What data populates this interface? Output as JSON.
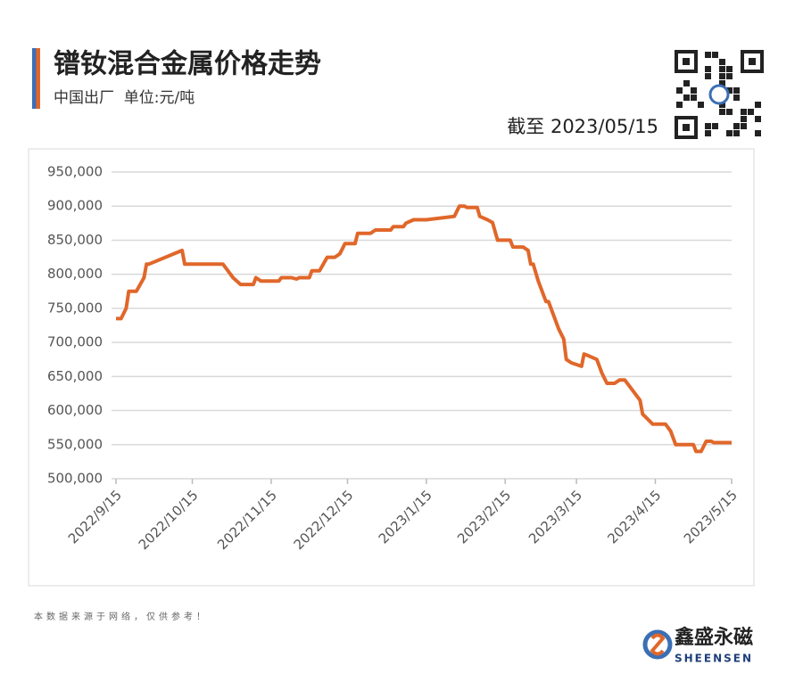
{
  "chart_data": {
    "type": "line",
    "title": "镨钕混合金属价格走势",
    "subtitle": "中国出厂  单位:元/吨",
    "annotation": "截至 2023/05/15",
    "color": "#e0672a",
    "grid": true,
    "x": [
      "2022/9/15",
      "2022/9/17",
      "2022/9/19",
      "2022/9/20",
      "2022/9/23",
      "2022/9/26",
      "2022/9/27",
      "2022/9/28",
      "2022/10/11",
      "2022/10/12",
      "2022/10/27",
      "2022/10/29",
      "2022/10/31",
      "2022/11/3",
      "2022/11/8",
      "2022/11/9",
      "2022/11/11",
      "2022/11/18",
      "2022/11/19",
      "2022/11/23",
      "2022/11/25",
      "2022/11/26",
      "2022/11/30",
      "2022/12/1",
      "2022/12/4",
      "2022/12/7",
      "2022/12/10",
      "2022/12/12",
      "2022/12/14",
      "2022/12/18",
      "2022/12/19",
      "2022/12/24",
      "2022/12/26",
      "2023/1/1",
      "2023/1/2",
      "2023/1/6",
      "2023/1/7",
      "2023/1/10",
      "2023/1/15",
      "2023/1/26",
      "2023/1/28",
      "2023/1/30",
      "2023/1/31",
      "2023/2/4",
      "2023/2/5",
      "2023/2/8",
      "2023/2/10",
      "2023/2/12",
      "2023/2/17",
      "2023/2/18",
      "2023/2/22",
      "2023/2/24",
      "2023/2/25",
      "2023/2/26",
      "2023/2/28",
      "2023/3/3",
      "2023/3/4",
      "2023/3/6",
      "2023/3/8",
      "2023/3/10",
      "2023/3/11",
      "2023/3/13",
      "2023/3/17",
      "2023/3/18",
      "2023/3/20",
      "2023/3/23",
      "2023/3/25",
      "2023/3/27",
      "2023/3/30",
      "2023/4/1",
      "2023/4/3",
      "2023/4/6",
      "2023/4/9",
      "2023/4/10",
      "2023/4/14",
      "2023/4/19",
      "2023/4/21",
      "2023/4/23",
      "2023/4/30",
      "2023/5/1",
      "2023/5/3",
      "2023/5/5",
      "2023/5/7",
      "2023/5/8",
      "2023/5/15"
    ],
    "values": [
      735000,
      735000,
      750000,
      775000,
      775000,
      795000,
      815000,
      815000,
      835000,
      815000,
      815000,
      805000,
      795000,
      785000,
      785000,
      795000,
      790000,
      790000,
      795000,
      795000,
      793000,
      795000,
      795000,
      805000,
      805000,
      825000,
      825000,
      830000,
      845000,
      845000,
      860000,
      860000,
      865000,
      865000,
      870000,
      870000,
      875000,
      880000,
      880000,
      885000,
      900000,
      900000,
      898000,
      898000,
      885000,
      880000,
      876000,
      850000,
      850000,
      840000,
      840000,
      835000,
      815000,
      815000,
      790000,
      760000,
      760000,
      740000,
      720000,
      705000,
      675000,
      670000,
      665000,
      683000,
      680000,
      675000,
      655000,
      640000,
      640000,
      645000,
      645000,
      630000,
      615000,
      595000,
      580000,
      580000,
      570000,
      550000,
      550000,
      540000,
      540000,
      555000,
      555000,
      553000,
      553000
    ],
    "xlim": [
      "2022/9/15",
      "2023/5/15"
    ],
    "xticks": [
      "2022/9/15",
      "2022/10/15",
      "2022/11/15",
      "2022/12/15",
      "2023/1/15",
      "2023/2/15",
      "2023/3/15",
      "2023/4/15",
      "2023/5/15"
    ],
    "ylim": [
      500000,
      950000
    ],
    "yticks": [
      {
        "value": 500000,
        "label": "500,000"
      },
      {
        "value": 550000,
        "label": "550,000"
      },
      {
        "value": 600000,
        "label": "600,000"
      },
      {
        "value": 650000,
        "label": "650,000"
      },
      {
        "value": 700000,
        "label": "700,000"
      },
      {
        "value": 750000,
        "label": "750,000"
      },
      {
        "value": 800000,
        "label": "800,000"
      },
      {
        "value": 850000,
        "label": "850,000"
      },
      {
        "value": 900000,
        "label": "900,000"
      },
      {
        "value": 950000,
        "label": "950,000"
      }
    ]
  },
  "footer": {
    "source": "本数据来源于网络，仅供参考！",
    "brand": "鑫盛永磁",
    "brand_en": "SHEENSEN"
  }
}
